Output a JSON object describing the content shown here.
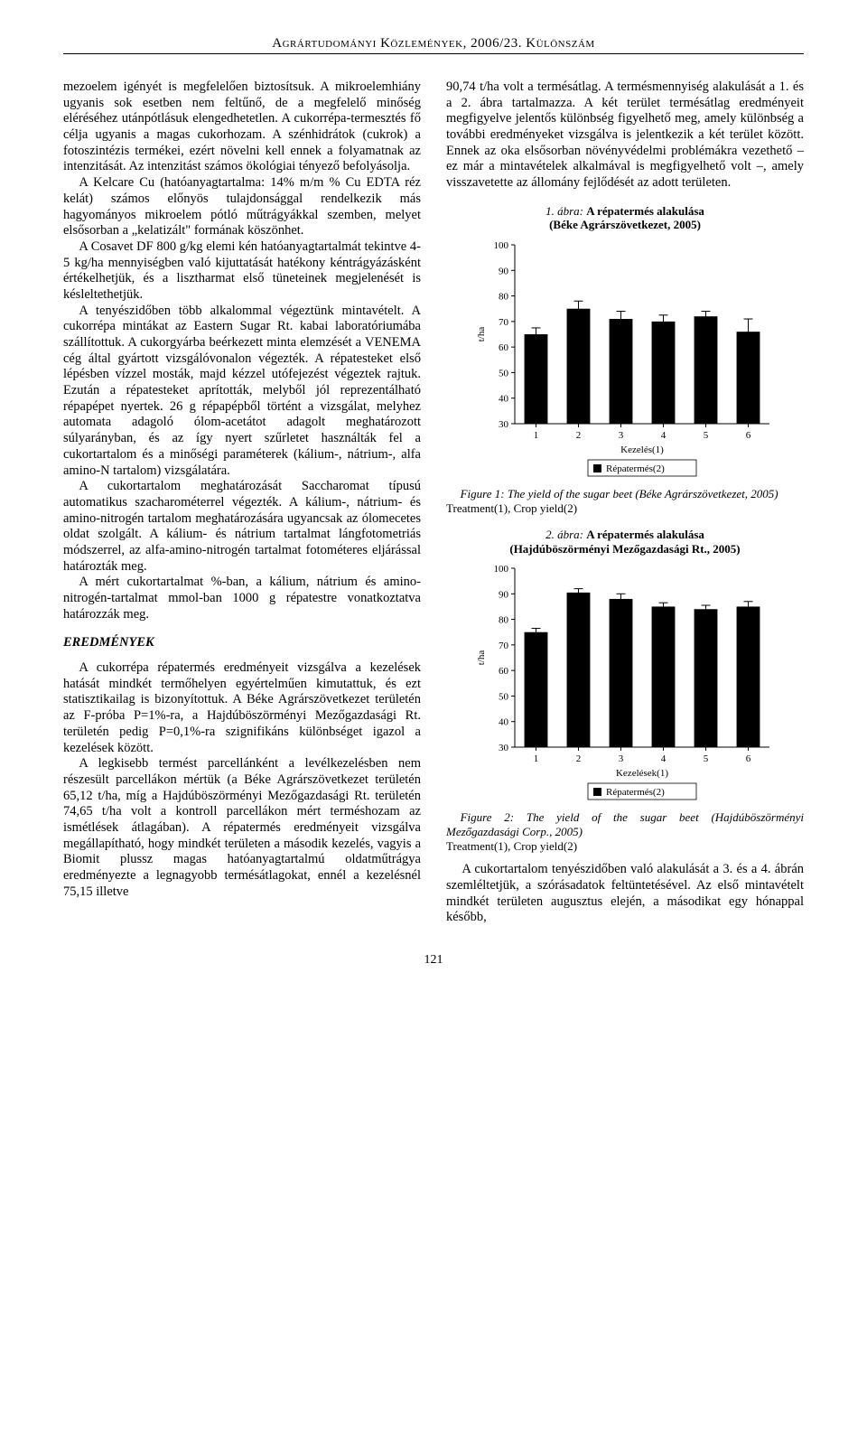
{
  "running_head": "Agrártudományi Közlemények, 2006/23. Különszám",
  "page_number": "121",
  "left_column": {
    "p1": "mezoelem igényét is megfelelően biztosítsuk. A mikroelemhiány ugyanis sok esetben nem feltűnő, de a megfelelő minőség eléréséhez utánpótlásuk elengedhetetlen. A cukorrépa-termesztés fő célja ugyanis a magas cukorhozam. A szénhidrátok (cukrok) a fotoszintézis termékei, ezért növelni kell ennek a folyamatnak az intenzitását. Az intenzitást számos ökológiai tényező befolyásolja.",
    "p2": "A Kelcare Cu (hatóanyagtartalma: 14% m/m % Cu EDTA réz kelát) számos előnyös tulajdonsággal rendelkezik más hagyományos mikroelem pótló műtrágyákkal szemben, melyet elsősorban a „kelatizált\" formának köszönhet.",
    "p3": "A Cosavet DF 800 g/kg elemi kén hatóanyagtartalmát tekintve 4-5 kg/ha mennyiségben való kijuttatását hatékony kéntrágyázásként értékelhetjük, és a lisztharmat első tüneteinek megjelenését is késleltethetjük.",
    "p4": "A tenyészidőben több alkalommal végeztünk mintavételt. A cukorrépa mintákat az Eastern Sugar Rt. kabai laboratóriumába szállítottuk. A cukorgyárba beérkezett minta elemzését a VENEMA cég által gyártott vizsgálóvonalon végezték. A répatesteket első lépésben vízzel mosták, majd kézzel utófejezést végeztek rajtuk. Ezután a répatesteket aprították, melyből jól reprezentálható répapépet nyertek. 26 g répapépből történt a vizsgálat, melyhez automata adagoló ólom-acetátot adagolt meghatározott súlyarányban, és az így nyert szűrletet használták fel a cukortartalom és a minőségi paraméterek (kálium-, nátrium-, alfa amino-N tartalom) vizsgálatára.",
    "p5": "A cukortartalom meghatározását Saccharomat típusú automatikus szacharométerrel végezték. A kálium-, nátrium- és amino-nitrogén tartalom meghatározására ugyancsak az ólomecetes oldat szolgált. A kálium- és nátrium tartalmat lángfotometriás módszerrel, az alfa-amino-nitrogén tartalmat fotométeres eljárással határozták meg.",
    "p6": "A mért cukortartalmat %-ban, a kálium, nátrium és amino-nitrogén-tartalmat mmol-ban 1000 g répatestre vonatkoztatva határozzák meg.",
    "section": "EREDMÉNYEK",
    "p7": "A cukorrépa répatermés eredményeit vizsgálva a kezelések hatását mindkét termőhelyen egyértelműen kimutattuk, és ezt statisztikailag is bizonyítottuk. A Béke Agrárszövetkezet területén az F-próba P=1%-ra, a Hajdúböszörményi Mezőgazdasági Rt. területén pedig P=0,1%-ra szignifikáns különbséget igazol a kezelések között.",
    "p8": "A legkisebb termést parcellánként a levélkezelésben nem részesült parcellákon mértük (a Béke Agrárszövetkezet területén 65,12 t/ha, míg a Hajdúböszörményi Mezőgazdasági Rt. területén 74,65 t/ha volt a kontroll parcellákon mért terméshozam az ismétlések átlagában). A répatermés eredményeit vizsgálva megállapítható, hogy mindkét területen a második kezelés, vagyis a Biomit plussz magas hatóanyagtartalmú oldatműtrágya eredményezte a legnagyobb termésátlagokat, ennél a kezelésnél 75,15 illetve"
  },
  "right_column": {
    "p1": "90,74 t/ha volt a termésátlag. A termésmennyiség alakulását a 1. és a 2. ábra tartalmazza. A két terület termésátlag eredményeit megfigyelve jelentős különbség figyelhető meg, amely különbség a további eredményeket vizsgálva is jelentkezik a két terület között. Ennek az oka elsősorban növényvédelmi problémákra vezethető – ez már a mintavételek alkalmával is megfigyelhető volt –, amely visszavetette az állomány fejlődését az adott területen.",
    "p2": "A cukortartalom tenyészidőben való alakulását a 3. és a 4. ábrán szemléltetjük, a szórásadatok feltüntetésével. Az első mintavételt mindkét területen augusztus elején, a másodikat egy hónappal később,"
  },
  "fig1": {
    "title_label": "1. ábra:",
    "title_bold": "A répatermés alakulása",
    "title_sub": "(Béke Agrárszövetkezet, 2005)",
    "ylabel": "t/ha",
    "xlabel": "Kezelés(1)",
    "legend": "Répatermés(2)",
    "ylim": [
      30,
      100
    ],
    "ytick_step": 10,
    "categories": [
      "1",
      "2",
      "3",
      "4",
      "5",
      "6"
    ],
    "values": [
      65,
      75,
      71,
      70,
      72,
      66
    ],
    "err": [
      2.5,
      3,
      3,
      2.5,
      2,
      5
    ],
    "bar_color": "#000000",
    "bg": "#ffffff",
    "axis_color": "#000000",
    "tick_fontsize": 11,
    "label_fontsize": 11,
    "bar_width": 0.55,
    "caption": "Figure 1: The yield of the sugar beet (Béke Agrárszövetkezet, 2005)",
    "sub": "Treatment(1), Crop yield(2)"
  },
  "fig2": {
    "title_label": "2. ábra:",
    "title_bold": "A répatermés alakulása",
    "title_sub": "(Hajdúböszörményi Mezőgazdasági Rt., 2005)",
    "ylabel": "t/ha",
    "xlabel": "Kezelések(1)",
    "legend": "Répatermés(2)",
    "ylim": [
      30,
      100
    ],
    "ytick_step": 10,
    "categories": [
      "1",
      "2",
      "3",
      "4",
      "5",
      "6"
    ],
    "values": [
      75,
      90.5,
      88,
      85,
      84,
      85
    ],
    "err": [
      1.5,
      1.5,
      2,
      1.5,
      1.5,
      2
    ],
    "bar_color": "#000000",
    "bg": "#ffffff",
    "axis_color": "#000000",
    "tick_fontsize": 11,
    "label_fontsize": 11,
    "bar_width": 0.55,
    "caption": "Figure 2: The yield of the sugar beet (Hajdúböszörményi Mezőgazdasági Corp., 2005)",
    "sub": "Treatment(1), Crop yield(2)"
  }
}
